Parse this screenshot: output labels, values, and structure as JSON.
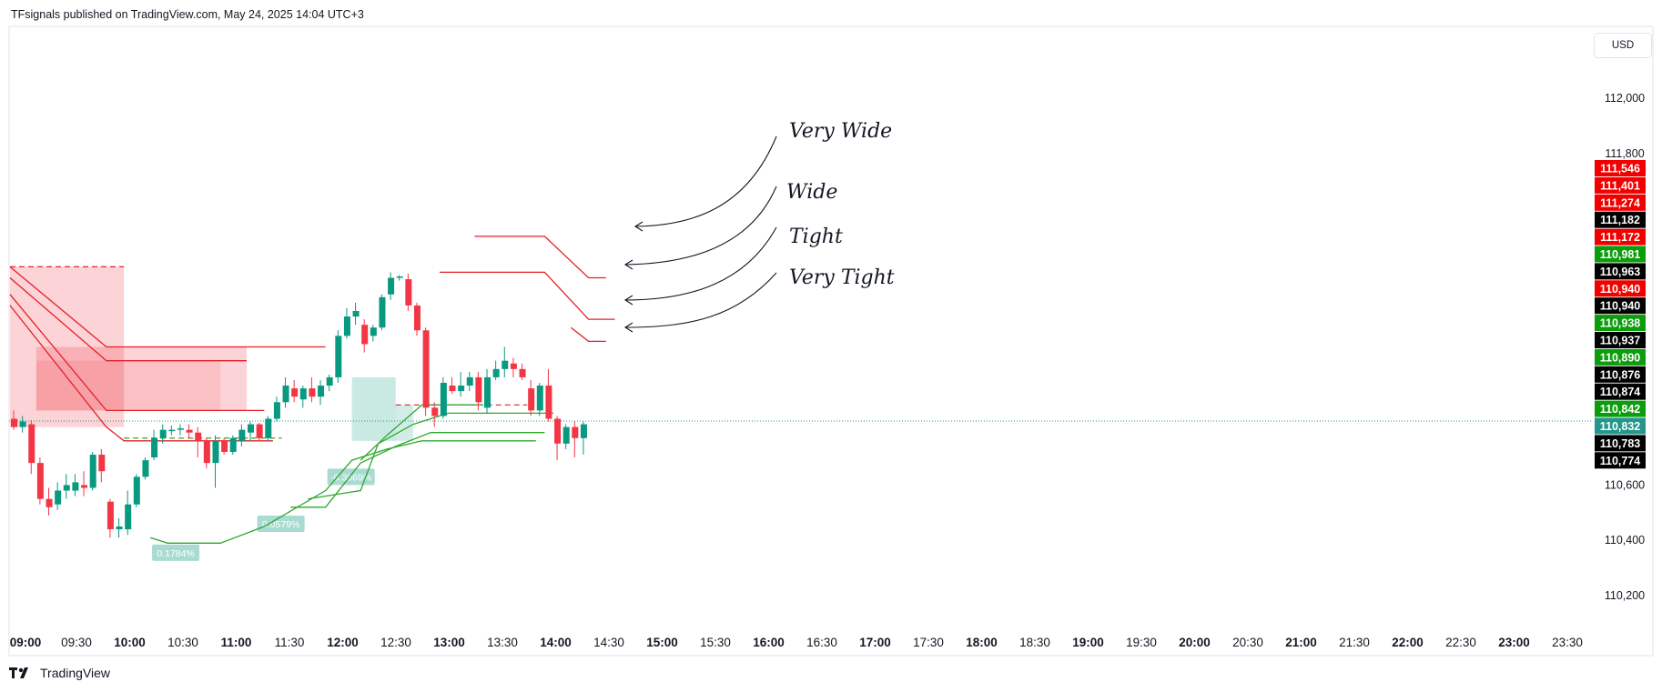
{
  "header": {
    "text": "TFsignals published on TradingView.com, May 24, 2025 14:04 UTC+3"
  },
  "currency": "USD",
  "footer": {
    "brand": "TradingView"
  },
  "annotations": [
    "Very Wide",
    "Wide",
    "Tight",
    "Very Tight"
  ],
  "chart_data": {
    "type": "candlestick",
    "y_ticks": [
      "112,000",
      "111,800",
      "110,600",
      "110,400",
      "110,200"
    ],
    "ylim": [
      110050,
      112150
    ],
    "x_ticks": [
      {
        "label": "09:00",
        "bold": true
      },
      {
        "label": "09:30",
        "bold": false
      },
      {
        "label": "10:00",
        "bold": true
      },
      {
        "label": "10:30",
        "bold": false
      },
      {
        "label": "11:00",
        "bold": true
      },
      {
        "label": "11:30",
        "bold": false
      },
      {
        "label": "12:00",
        "bold": true
      },
      {
        "label": "12:30",
        "bold": false
      },
      {
        "label": "13:00",
        "bold": true
      },
      {
        "label": "13:30",
        "bold": false
      },
      {
        "label": "14:00",
        "bold": true
      },
      {
        "label": "14:30",
        "bold": false
      },
      {
        "label": "15:00",
        "bold": true
      },
      {
        "label": "15:30",
        "bold": false
      },
      {
        "label": "16:00",
        "bold": true
      },
      {
        "label": "16:30",
        "bold": false
      },
      {
        "label": "17:00",
        "bold": true
      },
      {
        "label": "17:30",
        "bold": false
      },
      {
        "label": "18:00",
        "bold": true
      },
      {
        "label": "18:30",
        "bold": false
      },
      {
        "label": "19:00",
        "bold": true
      },
      {
        "label": "19:30",
        "bold": false
      },
      {
        "label": "20:00",
        "bold": true
      },
      {
        "label": "20:30",
        "bold": false
      },
      {
        "label": "21:00",
        "bold": true
      },
      {
        "label": "21:30",
        "bold": false
      },
      {
        "label": "22:00",
        "bold": true
      },
      {
        "label": "22:30",
        "bold": false
      },
      {
        "label": "23:00",
        "bold": true
      },
      {
        "label": "23:30",
        "bold": false
      }
    ],
    "current_price": 110832,
    "price_badges": [
      {
        "value": "111,546",
        "color": "#f20000"
      },
      {
        "value": "111,401",
        "color": "#f20000"
      },
      {
        "value": "111,274",
        "color": "#f20000"
      },
      {
        "value": "111,182",
        "color": "#000000"
      },
      {
        "value": "111,172",
        "color": "#f20000"
      },
      {
        "value": "110,981",
        "color": "#0c9d0c"
      },
      {
        "value": "110,963",
        "color": "#000000"
      },
      {
        "value": "110,940",
        "color": "#f20000"
      },
      {
        "value": "110,940",
        "color": "#000000"
      },
      {
        "value": "110,938",
        "color": "#0c9d0c"
      },
      {
        "value": "110,937",
        "color": "#000000"
      },
      {
        "value": "110,890",
        "color": "#0c9d0c"
      },
      {
        "value": "110,876",
        "color": "#000000"
      },
      {
        "value": "110,874",
        "color": "#000000"
      },
      {
        "value": "110,842",
        "color": "#0c9d0c"
      },
      {
        "value": "110,832",
        "color": "#24968b"
      },
      {
        "value": "110,783",
        "color": "#000000"
      },
      {
        "value": "110,774",
        "color": "#000000"
      }
    ],
    "percent_labels": [
      "0.1784%",
      "0.0579%",
      "-0.3069%"
    ],
    "colors": {
      "up": "#089981",
      "down": "#f23645",
      "stop_red": "#e4202a",
      "stop_green": "#2da82d"
    },
    "candles": [
      {
        "t": 0,
        "o": 110840,
        "h": 110870,
        "l": 110800,
        "c": 110810
      },
      {
        "t": 1,
        "o": 110810,
        "h": 110850,
        "l": 110790,
        "c": 110830
      },
      {
        "t": 2,
        "o": 110820,
        "h": 110835,
        "l": 110640,
        "c": 110680
      },
      {
        "t": 3,
        "o": 110680,
        "h": 110700,
        "l": 110530,
        "c": 110550
      },
      {
        "t": 4,
        "o": 110550,
        "h": 110590,
        "l": 110490,
        "c": 110520
      },
      {
        "t": 5,
        "o": 110530,
        "h": 110610,
        "l": 110510,
        "c": 110580
      },
      {
        "t": 6,
        "o": 110580,
        "h": 110640,
        "l": 110550,
        "c": 110600
      },
      {
        "t": 7,
        "o": 110580,
        "h": 110640,
        "l": 110560,
        "c": 110610
      },
      {
        "t": 8,
        "o": 110600,
        "h": 110650,
        "l": 110560,
        "c": 110590
      },
      {
        "t": 9,
        "o": 110590,
        "h": 110720,
        "l": 110580,
        "c": 110710
      },
      {
        "t": 10,
        "o": 110710,
        "h": 110730,
        "l": 110610,
        "c": 110650
      },
      {
        "t": 11,
        "o": 110540,
        "h": 110550,
        "l": 110410,
        "c": 110440
      },
      {
        "t": 12,
        "o": 110440,
        "h": 110480,
        "l": 110410,
        "c": 110450
      },
      {
        "t": 13,
        "o": 110440,
        "h": 110580,
        "l": 110420,
        "c": 110530
      },
      {
        "t": 14,
        "o": 110530,
        "h": 110640,
        "l": 110520,
        "c": 110630
      },
      {
        "t": 15,
        "o": 110630,
        "h": 110700,
        "l": 110620,
        "c": 110690
      },
      {
        "t": 16,
        "o": 110700,
        "h": 110800,
        "l": 110690,
        "c": 110770
      },
      {
        "t": 17,
        "o": 110770,
        "h": 110820,
        "l": 110750,
        "c": 110800
      },
      {
        "t": 18,
        "o": 110795,
        "h": 110815,
        "l": 110780,
        "c": 110800
      },
      {
        "t": 19,
        "o": 110800,
        "h": 110820,
        "l": 110780,
        "c": 110805
      },
      {
        "t": 20,
        "o": 110800,
        "h": 110820,
        "l": 110770,
        "c": 110790
      },
      {
        "t": 21,
        "o": 110790,
        "h": 110810,
        "l": 110700,
        "c": 110760
      },
      {
        "t": 22,
        "o": 110760,
        "h": 110770,
        "l": 110660,
        "c": 110680
      },
      {
        "t": 23,
        "o": 110680,
        "h": 110780,
        "l": 110590,
        "c": 110760
      },
      {
        "t": 24,
        "o": 110760,
        "h": 110770,
        "l": 110710,
        "c": 110720
      },
      {
        "t": 25,
        "o": 110720,
        "h": 110780,
        "l": 110710,
        "c": 110770
      },
      {
        "t": 26,
        "o": 110760,
        "h": 110820,
        "l": 110740,
        "c": 110800
      },
      {
        "t": 27,
        "o": 110790,
        "h": 110830,
        "l": 110760,
        "c": 110820
      },
      {
        "t": 28,
        "o": 110820,
        "h": 110825,
        "l": 110760,
        "c": 110770
      },
      {
        "t": 29,
        "o": 110770,
        "h": 110850,
        "l": 110760,
        "c": 110840
      },
      {
        "t": 30,
        "o": 110840,
        "h": 110920,
        "l": 110830,
        "c": 110900
      },
      {
        "t": 31,
        "o": 110900,
        "h": 110990,
        "l": 110880,
        "c": 110960
      },
      {
        "t": 32,
        "o": 110950,
        "h": 110980,
        "l": 110900,
        "c": 110920
      },
      {
        "t": 33,
        "o": 110910,
        "h": 110960,
        "l": 110880,
        "c": 110950
      },
      {
        "t": 34,
        "o": 110950,
        "h": 110990,
        "l": 110900,
        "c": 110920
      },
      {
        "t": 35,
        "o": 110920,
        "h": 110980,
        "l": 110890,
        "c": 110960
      },
      {
        "t": 36,
        "o": 110960,
        "h": 111000,
        "l": 110940,
        "c": 110990
      },
      {
        "t": 37,
        "o": 110990,
        "h": 111160,
        "l": 110970,
        "c": 111140
      },
      {
        "t": 38,
        "o": 111140,
        "h": 111240,
        "l": 111130,
        "c": 111210
      },
      {
        "t": 39,
        "o": 111210,
        "h": 111260,
        "l": 111180,
        "c": 111230
      },
      {
        "t": 40,
        "o": 111180,
        "h": 111200,
        "l": 111080,
        "c": 111110
      },
      {
        "t": 41,
        "o": 111140,
        "h": 111180,
        "l": 111120,
        "c": 111170
      },
      {
        "t": 42,
        "o": 111170,
        "h": 111290,
        "l": 111160,
        "c": 111280
      },
      {
        "t": 43,
        "o": 111290,
        "h": 111370,
        "l": 111270,
        "c": 111350
      },
      {
        "t": 44,
        "o": 111350,
        "h": 111360,
        "l": 111340,
        "c": 111355
      },
      {
        "t": 45,
        "o": 111345,
        "h": 111365,
        "l": 111230,
        "c": 111250
      },
      {
        "t": 46,
        "o": 111250,
        "h": 111260,
        "l": 111140,
        "c": 111160
      },
      {
        "t": 47,
        "o": 111160,
        "h": 111170,
        "l": 110850,
        "c": 110880
      },
      {
        "t": 48,
        "o": 110880,
        "h": 110900,
        "l": 110810,
        "c": 110850
      },
      {
        "t": 49,
        "o": 110850,
        "h": 110990,
        "l": 110840,
        "c": 110970
      },
      {
        "t": 50,
        "o": 110960,
        "h": 110990,
        "l": 110930,
        "c": 110940
      },
      {
        "t": 51,
        "o": 110940,
        "h": 111010,
        "l": 110920,
        "c": 110960
      },
      {
        "t": 52,
        "o": 110960,
        "h": 111010,
        "l": 110940,
        "c": 110990
      },
      {
        "t": 53,
        "o": 110990,
        "h": 111010,
        "l": 110870,
        "c": 110900
      },
      {
        "t": 54,
        "o": 110880,
        "h": 111020,
        "l": 110860,
        "c": 110990
      },
      {
        "t": 55,
        "o": 110990,
        "h": 111050,
        "l": 110980,
        "c": 111020
      },
      {
        "t": 56,
        "o": 111020,
        "h": 111100,
        "l": 110990,
        "c": 111050
      },
      {
        "t": 57,
        "o": 111040,
        "h": 111060,
        "l": 110990,
        "c": 111020
      },
      {
        "t": 58,
        "o": 111020,
        "h": 111040,
        "l": 110980,
        "c": 110990
      },
      {
        "t": 59,
        "o": 110950,
        "h": 110980,
        "l": 110850,
        "c": 110870
      },
      {
        "t": 60,
        "o": 110870,
        "h": 110970,
        "l": 110850,
        "c": 110960
      },
      {
        "t": 61,
        "o": 110960,
        "h": 111020,
        "l": 110830,
        "c": 110840
      },
      {
        "t": 62,
        "o": 110840,
        "h": 110850,
        "l": 110690,
        "c": 110750
      },
      {
        "t": 63,
        "o": 110750,
        "h": 110820,
        "l": 110730,
        "c": 110810
      },
      {
        "t": 64,
        "o": 110810,
        "h": 110830,
        "l": 110700,
        "c": 110770
      },
      {
        "t": 65,
        "o": 110770,
        "h": 110830,
        "l": 110710,
        "c": 110820
      }
    ],
    "red_stop_lines": [
      [
        [
          0,
          111390
        ],
        [
          11,
          111100
        ],
        [
          26,
          111100
        ],
        [
          36,
          111100
        ]
      ],
      [
        [
          0,
          111350
        ],
        [
          11,
          111050
        ],
        [
          27,
          111050
        ]
      ],
      [
        [
          0,
          111290
        ],
        [
          11,
          110870
        ],
        [
          29,
          110870
        ]
      ],
      [
        [
          0,
          111250
        ],
        [
          11,
          110810
        ],
        [
          13,
          110760
        ],
        [
          30,
          110760
        ]
      ],
      [
        [
          53,
          111500
        ],
        [
          61,
          111500
        ],
        [
          66,
          111350
        ],
        [
          68,
          111350
        ]
      ],
      [
        [
          49,
          111370
        ],
        [
          61,
          111370
        ],
        [
          66,
          111200
        ],
        [
          69,
          111200
        ]
      ],
      [
        [
          64,
          111170
        ],
        [
          66,
          111120
        ],
        [
          68,
          111120
        ]
      ]
    ],
    "green_stop_lines": [
      [
        [
          16,
          110410
        ],
        [
          18,
          110390
        ],
        [
          24,
          110390
        ],
        [
          29,
          110450
        ],
        [
          36,
          110580
        ],
        [
          39,
          110690
        ],
        [
          43,
          110730
        ],
        [
          47,
          110760
        ],
        [
          60,
          110760
        ]
      ],
      [
        [
          32,
          110520
        ],
        [
          36,
          110520
        ],
        [
          40,
          110680
        ],
        [
          44,
          110740
        ],
        [
          48,
          110790
        ],
        [
          61,
          110790
        ]
      ],
      [
        [
          34,
          110550
        ],
        [
          40,
          110580
        ],
        [
          42,
          110750
        ],
        [
          46,
          110820
        ],
        [
          50,
          110860
        ],
        [
          62,
          110860
        ]
      ],
      [
        [
          40,
          110690
        ],
        [
          43,
          110780
        ],
        [
          47,
          110890
        ],
        [
          54,
          110890
        ]
      ]
    ]
  }
}
